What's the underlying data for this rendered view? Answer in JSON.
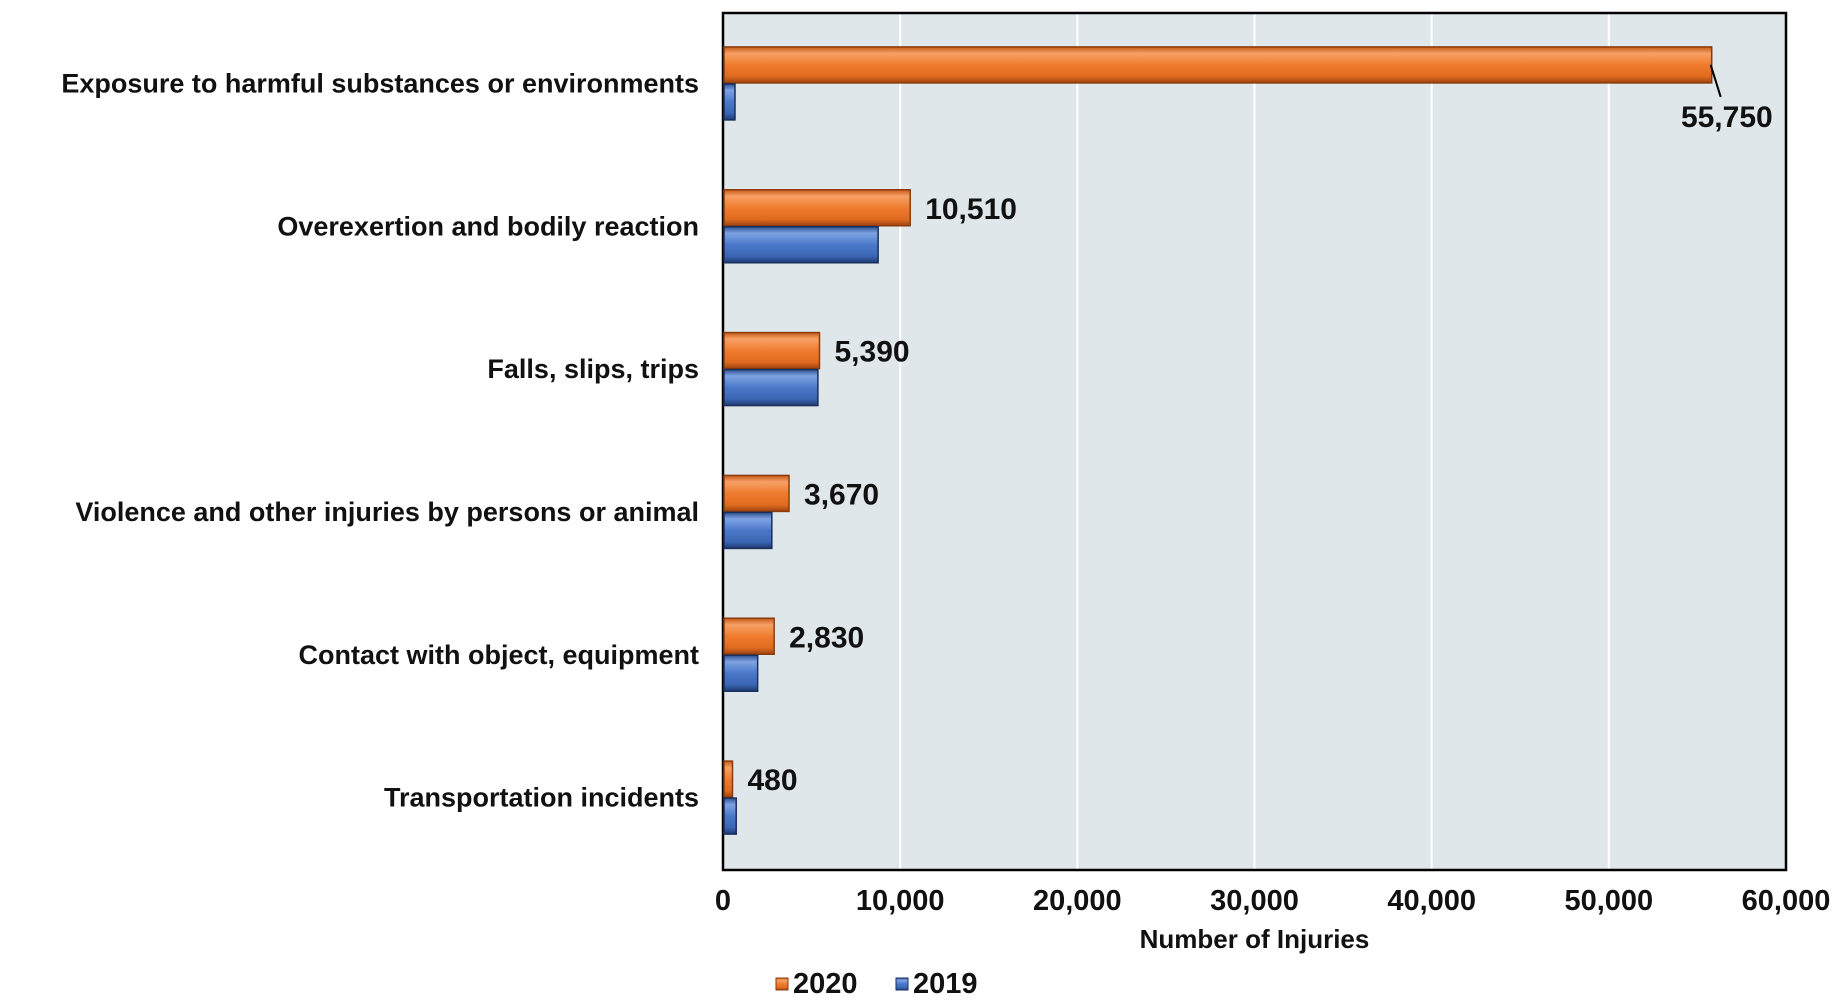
{
  "chart_data": {
    "type": "bar",
    "orientation": "horizontal",
    "categories": [
      "Exposure to harmful substances or environments",
      "Overexertion and bodily reaction",
      "Falls, slips, trips",
      "Violence and other injuries by persons or animal",
      "Contact with object, equipment",
      "Transportation incidents"
    ],
    "series": [
      {
        "name": "2020",
        "color": "#f07b2e",
        "values": [
          55750,
          10510,
          5390,
          3670,
          2830,
          480
        ],
        "data_labels": [
          "55,750",
          "10,510",
          "5,390",
          "3,670",
          "2,830",
          "480"
        ]
      },
      {
        "name": "2019",
        "color": "#4a78c8",
        "values": [
          620,
          8700,
          5300,
          2700,
          1900,
          690
        ]
      }
    ],
    "xlabel": "Number of Injuries",
    "ylabel": "",
    "xlim": [
      0,
      60000
    ],
    "x_ticks": [
      0,
      10000,
      20000,
      30000,
      40000,
      50000,
      60000
    ],
    "x_tick_labels": [
      "0",
      "10,000",
      "20,000",
      "30,000",
      "40,000",
      "50,000",
      "60,000"
    ],
    "grid": "vertical",
    "legend_position": "bottom",
    "plot_background": "#e0e7ea"
  }
}
